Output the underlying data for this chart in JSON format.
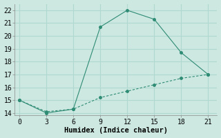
{
  "line1_x": [
    0,
    3,
    6,
    9,
    12,
    15,
    18,
    21
  ],
  "line1_y": [
    15.0,
    14.0,
    14.3,
    20.7,
    22.0,
    21.3,
    18.7,
    17.0
  ],
  "line2_x": [
    0,
    3,
    6,
    9,
    12,
    15,
    18,
    21
  ],
  "line2_y": [
    15.0,
    14.1,
    14.3,
    15.2,
    15.7,
    16.2,
    16.7,
    17.0
  ],
  "line_color": "#2e8b74",
  "bg_color": "#cce8e0",
  "grid_color": "#b0d8d0",
  "xlabel": "Humidex (Indice chaleur)",
  "xlim": [
    -0.5,
    22
  ],
  "ylim": [
    13.8,
    22.5
  ],
  "xticks": [
    0,
    3,
    6,
    9,
    12,
    15,
    18,
    21
  ],
  "yticks": [
    14,
    15,
    16,
    17,
    18,
    19,
    20,
    21,
    22
  ],
  "xlabel_fontsize": 7.5,
  "tick_fontsize": 7.0
}
